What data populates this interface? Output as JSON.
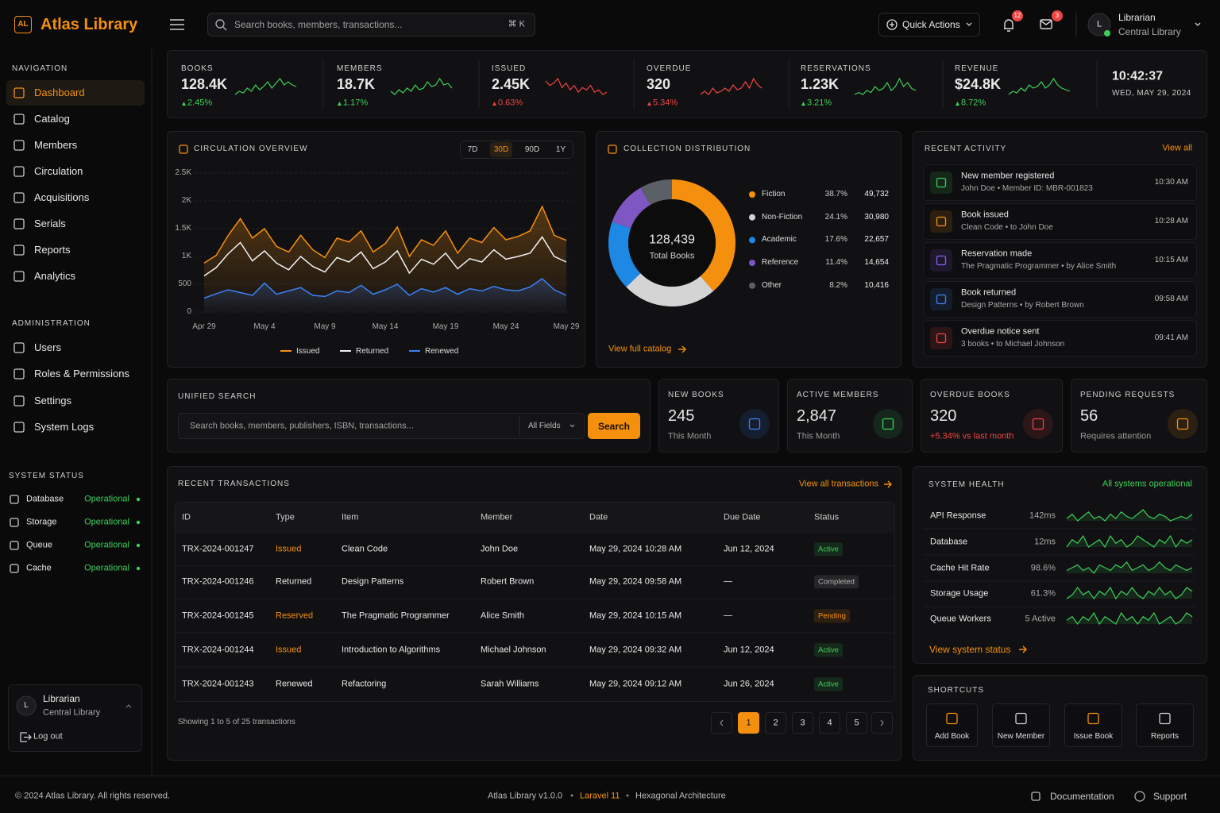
{
  "brand": {
    "logo": "AL",
    "name": "Atlas Library"
  },
  "header": {
    "search_placeholder": "Search books, members, transactions...",
    "shortcut": "⌘ K",
    "quick_actions": "Quick Actions",
    "notifications": "12",
    "messages": "3",
    "user": {
      "avatar": "L",
      "name": "Librarian",
      "role": "Central Library"
    }
  },
  "sidebar": {
    "nav_title": "NAVIGATION",
    "active": "Dashboard",
    "nav": [
      "Dashboard",
      "Catalog",
      "Members",
      "Circulation",
      "Acquisitions",
      "Serials",
      "Reports",
      "Analytics"
    ],
    "admin_title": "ADMINISTRATION",
    "admin": [
      "Users",
      "Roles & Permissions",
      "Settings",
      "System Logs"
    ],
    "status_title": "SYSTEM STATUS",
    "status": [
      {
        "name": "Database",
        "state": "Operational"
      },
      {
        "name": "Storage",
        "state": "Operational"
      },
      {
        "name": "Queue",
        "state": "Operational"
      },
      {
        "name": "Cache",
        "state": "Operational"
      }
    ],
    "user": {
      "avatar": "L",
      "name": "Librarian",
      "role": "Central Library"
    },
    "logout": "Log out"
  },
  "stats": [
    {
      "label": "BOOKS",
      "value": "128.4K",
      "change": "2.45%",
      "color": "#3ecf5a",
      "trend": [
        3,
        4,
        3.5,
        5,
        4,
        6,
        4.5,
        5.5,
        7,
        5,
        6.5,
        8,
        6,
        7,
        6,
        5.5
      ]
    },
    {
      "label": "MEMBERS",
      "value": "18.7K",
      "change": "1.17%",
      "color": "#3ecf5a",
      "trend": [
        4,
        3,
        4.5,
        3.5,
        5,
        4,
        6,
        4.5,
        5,
        7,
        5.5,
        6,
        8,
        6,
        6.5,
        5
      ]
    },
    {
      "label": "ISSUED",
      "value": "2.45K",
      "change": "0.63%",
      "color": "#ef4444",
      "trend": [
        8,
        6,
        7,
        9,
        5,
        7,
        4,
        6,
        3,
        5,
        4,
        6,
        3,
        4,
        2,
        3
      ]
    },
    {
      "label": "OVERDUE",
      "value": "320",
      "change": "5.34%",
      "color": "#ef4444",
      "trend": [
        3,
        4,
        3,
        5,
        3.5,
        4,
        5,
        4,
        6,
        4.5,
        5,
        7,
        5,
        8,
        6,
        5
      ]
    },
    {
      "label": "RESERVATIONS",
      "value": "1.23K",
      "change": "3.21%",
      "color": "#3ecf5a",
      "trend": [
        3,
        3.5,
        3,
        4,
        3.5,
        5,
        4,
        4.5,
        6,
        4,
        5,
        7,
        5,
        6,
        4.5,
        4
      ]
    },
    {
      "label": "REVENUE",
      "value": "$24.8K",
      "change": "8.72%",
      "color": "#3ecf5a",
      "trend": [
        3,
        4,
        3.5,
        5,
        4,
        6,
        5,
        5.5,
        7,
        5,
        6,
        8,
        6,
        5,
        4.5,
        4
      ]
    }
  ],
  "clock": {
    "time": "10:42:37",
    "date": "WED, MAY 29, 2024"
  },
  "circulation": {
    "title": "CIRCULATION OVERVIEW",
    "ranges": [
      "7D",
      "30D",
      "90D",
      "1Y"
    ],
    "active_range": "30D",
    "chart": {
      "type": "line",
      "categories": [
        "Apr 29",
        null,
        null,
        null,
        null,
        "May 4",
        null,
        null,
        null,
        null,
        "May 9",
        null,
        null,
        null,
        null,
        "May 14",
        null,
        null,
        null,
        null,
        "May 19",
        null,
        null,
        null,
        null,
        "May 24",
        null,
        null,
        null,
        null,
        "May 29"
      ],
      "ylim": [
        0,
        2500
      ],
      "yticks": [
        0,
        500,
        {
          "value": 1000,
          "label": "1K"
        },
        {
          "value": 1500,
          "label": "1.5K"
        },
        {
          "value": 2000,
          "label": "2K"
        },
        {
          "value": 2500,
          "label": "2.5K"
        }
      ],
      "grid": true,
      "series": [
        {
          "name": "Issued",
          "color": "#f5900f",
          "values": [
            880,
            1020,
            1380,
            1680,
            1330,
            1500,
            1180,
            1080,
            1380,
            1120,
            980,
            1330,
            1260,
            1460,
            1080,
            1230,
            1530,
            1000,
            1300,
            1200,
            1460,
            1060,
            1330,
            1250,
            1520,
            1300,
            1360,
            1460,
            1900,
            1380,
            1290
          ]
        },
        {
          "name": "Returned",
          "color": "#f2f2f2",
          "values": [
            650,
            800,
            1050,
            1250,
            920,
            1100,
            880,
            760,
            1000,
            820,
            720,
            980,
            900,
            1080,
            780,
            900,
            1100,
            700,
            950,
            860,
            1060,
            780,
            960,
            900,
            1120,
            950,
            1000,
            1060,
            1350,
            1000,
            900
          ]
        },
        {
          "name": "Renewed",
          "color": "#3b82f6",
          "values": [
            250,
            330,
            400,
            350,
            300,
            520,
            320,
            380,
            440,
            300,
            280,
            380,
            350,
            480,
            320,
            400,
            500,
            300,
            420,
            360,
            440,
            320,
            420,
            380,
            460,
            400,
            380,
            450,
            600,
            400,
            300
          ]
        }
      ]
    }
  },
  "collection": {
    "title": "COLLECTION DISTRIBUTION",
    "total": "128,439",
    "total_label": "Total Books",
    "link": "View full catalog",
    "chart": {
      "type": "pie",
      "categories": [
        "Fiction",
        "Non-Fiction",
        "Academic",
        "Reference",
        "Other"
      ],
      "values": [
        38.7,
        24.1,
        17.6,
        11.4,
        8.2
      ],
      "value_labels": [
        "38.7%",
        "24.1%",
        "17.6%",
        "11.4%",
        "8.2%"
      ],
      "counts": [
        49732,
        30980,
        22657,
        14654,
        10416
      ],
      "count_labels": [
        "49,732",
        "30,980",
        "22,657",
        "14,654",
        "10,416"
      ],
      "colors": [
        "#f5900f",
        "#d4d4d4",
        "#1e88e5",
        "#7e57c2",
        "#5b5f66"
      ]
    }
  },
  "activity": {
    "title": "RECENT ACTIVITY",
    "link": "View all",
    "items": [
      {
        "title": "New member registered",
        "subtitle": "John Doe • Member ID: MBR-001823",
        "time": "10:30 AM",
        "color": "#3ecf5a"
      },
      {
        "title": "Book issued",
        "subtitle": "Clean Code • to John Doe",
        "time": "10:28 AM",
        "color": "#f5900f"
      },
      {
        "title": "Reservation made",
        "subtitle": "The Pragmatic Programmer • by Alice Smith",
        "time": "10:15 AM",
        "color": "#8b5cf6"
      },
      {
        "title": "Book returned",
        "subtitle": "Design Patterns • by Robert Brown",
        "time": "09:58 AM",
        "color": "#3b82f6"
      },
      {
        "title": "Overdue notice sent",
        "subtitle": "3 books • to Michael Johnson",
        "time": "09:41 AM",
        "color": "#ef4444"
      }
    ]
  },
  "search": {
    "title": "UNIFIED SEARCH",
    "placeholder": "Search books, members, publishers, ISBN, transactions...",
    "scope": "All Fields",
    "button": "Search"
  },
  "kpis": [
    {
      "label": "NEW BOOKS",
      "value": "245",
      "sub": "This Month",
      "sub_color": "#9a9a9a",
      "color": "#3b82f6"
    },
    {
      "label": "ACTIVE MEMBERS",
      "value": "2,847",
      "sub": "This Month",
      "sub_color": "#9a9a9a",
      "color": "#3ecf5a"
    },
    {
      "label": "OVERDUE BOOKS",
      "value": "320",
      "sub": "+5.34% vs last month",
      "sub_color": "#ef4444",
      "color": "#ef4444"
    },
    {
      "label": "PENDING REQUESTS",
      "value": "56",
      "sub": "Requires attention",
      "sub_color": "#9a9a9a",
      "color": "#f5900f"
    }
  ],
  "transactions": {
    "title": "RECENT TRANSACTIONS",
    "link": "View all transactions",
    "columns": [
      "ID",
      "Type",
      "Item",
      "Member",
      "Date",
      "Due Date",
      "Status"
    ],
    "rows": [
      [
        "TRX-2024-001247",
        "Issued",
        "Clean Code",
        "John Doe",
        "May 29, 2024 10:28 AM",
        "Jun 12, 2024",
        "Active"
      ],
      [
        "TRX-2024-001246",
        "Returned",
        "Design Patterns",
        "Robert Brown",
        "May 29, 2024 09:58 AM",
        "—",
        "Completed"
      ],
      [
        "TRX-2024-001245",
        "Reserved",
        "The Pragmatic Programmer",
        "Alice Smith",
        "May 29, 2024 10:15 AM",
        "—",
        "Pending"
      ],
      [
        "TRX-2024-001244",
        "Issued",
        "Introduction to Algorithms",
        "Michael Johnson",
        "May 29, 2024 09:32 AM",
        "Jun 12, 2024",
        "Active"
      ],
      [
        "TRX-2024-001243",
        "Renewed",
        "Refactoring",
        "Sarah Williams",
        "May 29, 2024 09:12 AM",
        "Jun 26, 2024",
        "Active"
      ]
    ],
    "type_colors": [
      "#f5900f",
      "#e8e8e8",
      "#f5900f",
      "#f5900f",
      "#e8e8e8"
    ],
    "status_colors": [
      "#3ecf5a",
      "#b5b5b5",
      "#f5900f",
      "#3ecf5a",
      "#3ecf5a"
    ],
    "summary": "Showing 1 to 5 of 25 transactions",
    "pages": [
      "1",
      "2",
      "3",
      "4",
      "5"
    ],
    "active_page": "1"
  },
  "health": {
    "title": "SYSTEM HEALTH",
    "status": "All systems operational",
    "link": "View system status",
    "items": [
      {
        "name": "API Response",
        "value": "142ms",
        "trend": [
          5,
          7,
          4,
          6,
          8,
          5,
          6,
          4,
          7,
          5,
          8,
          6,
          5,
          7,
          9,
          6,
          5,
          7,
          6,
          4,
          5,
          6,
          5,
          7
        ]
      },
      {
        "name": "Database",
        "value": "12ms",
        "trend": [
          4,
          6,
          5,
          7,
          4,
          5,
          6,
          4,
          7,
          5,
          6,
          4,
          5,
          7,
          6,
          5,
          4,
          6,
          5,
          7,
          4,
          6,
          5,
          6
        ]
      },
      {
        "name": "Cache Hit Rate",
        "value": "98.6%",
        "trend": [
          5,
          6,
          7,
          5,
          6,
          4,
          7,
          6,
          5,
          7,
          6,
          8,
          5,
          6,
          7,
          5,
          6,
          8,
          6,
          5,
          7,
          6,
          5,
          6
        ]
      },
      {
        "name": "Storage Usage",
        "value": "61.3%",
        "trend": [
          4,
          5,
          7,
          5,
          6,
          4,
          6,
          5,
          7,
          4,
          6,
          5,
          7,
          5,
          4,
          6,
          5,
          7,
          5,
          6,
          4,
          5,
          7,
          6
        ]
      },
      {
        "name": "Queue Workers",
        "value": "5 Active",
        "trend": [
          5,
          6,
          4,
          6,
          5,
          7,
          4,
          6,
          5,
          4,
          7,
          5,
          6,
          4,
          6,
          5,
          7,
          4,
          5,
          6,
          4,
          5,
          7,
          6
        ]
      }
    ]
  },
  "shortcuts": {
    "title": "SHORTCUTS",
    "items": [
      "Add Book",
      "New Member",
      "Issue Book",
      "Reports"
    ],
    "colors": [
      "#f5900f",
      "#d4d4d4",
      "#f5900f",
      "#d4d4d4"
    ]
  },
  "footer": {
    "copyright": "© 2024 Atlas Library. All rights reserved.",
    "version": "Atlas Library v1.0.0",
    "sep1": "•",
    "framework": "Laravel 11",
    "sep2": "•",
    "architecture": "Hexagonal Architecture",
    "docs": "Documentation",
    "support": "Support"
  }
}
